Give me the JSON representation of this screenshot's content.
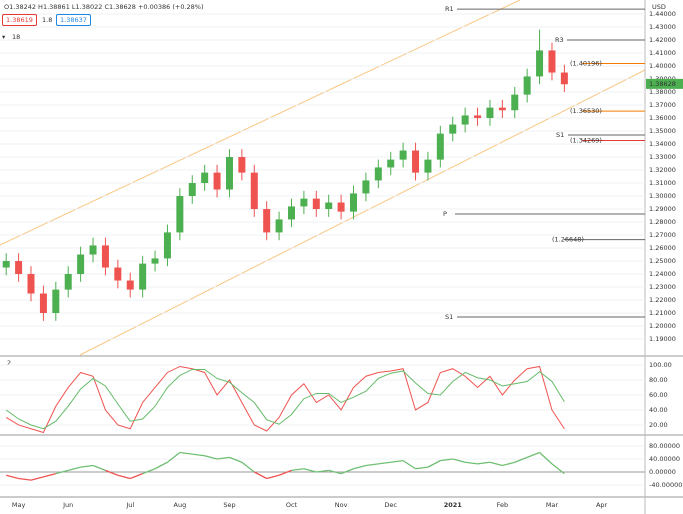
{
  "header": {
    "ohlc": "O1.38242 H1.38861 L1.38022 C1.38628 +0.00386 (+0.28%)",
    "bid": "1.38619",
    "spread": "1.8",
    "ask": "1.38637",
    "indicator": "18",
    "sub_indicator": "2",
    "currency": "USD"
  },
  "chart_data": [
    {
      "type": "candlestick",
      "categories": [
        null,
        "May",
        null,
        null,
        null,
        "Jun",
        null,
        null,
        null,
        null,
        "Jul",
        null,
        null,
        null,
        "Aug",
        null,
        null,
        null,
        "Sep",
        null,
        null,
        null,
        null,
        "Oct",
        null,
        null,
        null,
        "Nov",
        null,
        null,
        null,
        "Dec",
        null,
        null,
        null,
        null,
        "2021",
        null,
        null,
        null,
        "Feb",
        null,
        null,
        null,
        "Mar",
        null,
        null,
        null,
        "Apr",
        null,
        null,
        null
      ],
      "open": [
        1.245,
        1.25,
        1.24,
        1.225,
        1.21,
        1.228,
        1.24,
        1.255,
        1.262,
        1.245,
        1.235,
        1.228,
        1.248,
        1.252,
        1.272,
        1.3,
        1.31,
        1.318,
        1.305,
        1.33,
        1.318,
        1.29,
        1.272,
        1.282,
        1.292,
        1.298,
        1.29,
        1.295,
        1.288,
        1.302,
        1.312,
        1.322,
        1.328,
        1.335,
        1.318,
        1.328,
        1.348,
        1.355,
        1.362,
        1.36,
        1.368,
        1.366,
        1.378,
        1.392,
        1.412,
        1.395,
        null,
        null,
        null,
        null,
        null,
        null
      ],
      "high": [
        1.256,
        1.256,
        1.246,
        1.231,
        1.234,
        1.246,
        1.261,
        1.268,
        1.268,
        1.251,
        1.241,
        1.254,
        1.258,
        1.278,
        1.306,
        1.316,
        1.324,
        1.324,
        1.336,
        1.336,
        1.324,
        1.296,
        1.288,
        1.298,
        1.304,
        1.304,
        1.301,
        1.301,
        1.308,
        1.318,
        1.328,
        1.334,
        1.341,
        1.341,
        1.334,
        1.354,
        1.361,
        1.368,
        1.368,
        1.374,
        1.374,
        1.384,
        1.398,
        1.428,
        1.418,
        1.401,
        null,
        null,
        null,
        null,
        null,
        null
      ],
      "low": [
        1.239,
        1.234,
        1.219,
        1.204,
        1.204,
        1.222,
        1.234,
        1.249,
        1.239,
        1.229,
        1.222,
        1.222,
        1.242,
        1.246,
        1.266,
        1.294,
        1.304,
        1.299,
        1.299,
        1.312,
        1.284,
        1.266,
        1.266,
        1.276,
        1.286,
        1.284,
        1.284,
        1.282,
        1.282,
        1.296,
        1.306,
        1.316,
        1.322,
        1.312,
        1.312,
        1.322,
        1.342,
        1.349,
        1.354,
        1.354,
        1.36,
        1.36,
        1.372,
        1.386,
        1.389,
        1.38,
        null,
        null,
        null,
        null,
        null,
        null
      ],
      "close": [
        1.25,
        1.24,
        1.225,
        1.21,
        1.228,
        1.24,
        1.255,
        1.262,
        1.245,
        1.235,
        1.228,
        1.248,
        1.252,
        1.272,
        1.3,
        1.31,
        1.318,
        1.305,
        1.33,
        1.318,
        1.29,
        1.272,
        1.282,
        1.292,
        1.298,
        1.29,
        1.295,
        1.288,
        1.302,
        1.312,
        1.322,
        1.328,
        1.335,
        1.318,
        1.328,
        1.348,
        1.355,
        1.362,
        1.36,
        1.368,
        1.366,
        1.378,
        1.392,
        1.412,
        1.395,
        1.386,
        null,
        null,
        null,
        null,
        null,
        null
      ],
      "up_color": "#4caf50",
      "down_color": "#ef5350",
      "ylim": [
        1.1777,
        1.4508
      ],
      "yticks": [
        {
          "value": 1.19,
          "label": "1.19000"
        },
        {
          "value": 1.2,
          "label": "1.20000"
        },
        {
          "value": 1.21,
          "label": "1.21000"
        },
        {
          "value": 1.22,
          "label": "1.22000"
        },
        {
          "value": 1.23,
          "label": "1.23000"
        },
        {
          "value": 1.24,
          "label": "1.24000"
        },
        {
          "value": 1.25,
          "label": "1.25000"
        },
        {
          "value": 1.26,
          "label": "1.26000"
        },
        {
          "value": 1.27,
          "label": "1.27000"
        },
        {
          "value": 1.28,
          "label": "1.28000"
        },
        {
          "value": 1.29,
          "label": "1.29000"
        },
        {
          "value": 1.3,
          "label": "1.30000"
        },
        {
          "value": 1.31,
          "label": "1.31000"
        },
        {
          "value": 1.32,
          "label": "1.32000"
        },
        {
          "value": 1.33,
          "label": "1.33000"
        },
        {
          "value": 1.34,
          "label": "1.34000"
        },
        {
          "value": 1.35,
          "label": "1.35000"
        },
        {
          "value": 1.36,
          "label": "1.36000"
        },
        {
          "value": 1.37,
          "label": "1.37000"
        },
        {
          "value": 1.38,
          "label": "1.38000"
        },
        {
          "value": 1.39,
          "label": "1.39000"
        },
        {
          "value": 1.4,
          "label": "1.40000"
        },
        {
          "value": 1.41,
          "label": "1.41000"
        },
        {
          "value": 1.42,
          "label": "1.42000"
        },
        {
          "value": 1.43,
          "label": "1.43000"
        },
        {
          "value": 1.44,
          "label": "1.44000"
        }
      ],
      "last_price": 1.38628,
      "last_price_color": "#4caf50",
      "levels": [
        {
          "label": "R1",
          "value": 1.4438,
          "color": "#666"
        },
        {
          "label": "R3",
          "value": 1.42,
          "color": "#666"
        },
        {
          "label": "(1.40196)",
          "value": 1.40196,
          "color": "#f57c00"
        },
        {
          "label": "(1.36530)",
          "value": 1.3653,
          "color": "#f57c00"
        },
        {
          "label": "S1",
          "value": 1.3469,
          "color": "#666"
        },
        {
          "label": "(1.34269)",
          "value": 1.34269,
          "color": "#e53935"
        },
        {
          "label": "P",
          "value": 1.2862,
          "color": "#666"
        },
        {
          "label": "(1.26648)",
          "value": 1.26648,
          "color": "#666"
        },
        {
          "label": "S1",
          "value": 1.2069,
          "color": "#666"
        }
      ],
      "grid": true
    },
    {
      "type": "line",
      "series": [
        {
          "color": "#ef5350",
          "values": [
            30,
            20,
            15,
            10,
            45,
            70,
            90,
            85,
            40,
            20,
            15,
            50,
            70,
            90,
            98,
            95,
            90,
            60,
            80,
            50,
            20,
            12,
            30,
            60,
            75,
            50,
            60,
            40,
            70,
            85,
            90,
            92,
            95,
            40,
            50,
            90,
            95,
            85,
            70,
            85,
            60,
            80,
            95,
            98,
            40,
            15
          ]
        },
        {
          "color": "#66bb6a",
          "values": [
            40,
            28,
            20,
            15,
            25,
            45,
            68,
            82,
            72,
            48,
            25,
            28,
            45,
            70,
            86,
            94,
            94,
            82,
            77,
            63,
            50,
            27,
            21,
            34,
            55,
            62,
            62,
            50,
            57,
            65,
            82,
            89,
            92,
            76,
            62,
            60,
            78,
            90,
            83,
            80,
            72,
            75,
            78,
            91,
            78,
            51
          ]
        }
      ],
      "ylim": [
        9.3,
        109.3
      ],
      "yticks": [
        {
          "value": 20,
          "label": "20.00"
        },
        {
          "value": 40,
          "label": "40.00"
        },
        {
          "value": 60,
          "label": "60.00"
        },
        {
          "value": 80,
          "label": "80.00"
        },
        {
          "value": 100,
          "label": "100.00"
        }
      ],
      "grid": true
    },
    {
      "type": "oscillator",
      "values": [
        -10,
        -20,
        -25,
        -15,
        -5,
        5,
        15,
        20,
        5,
        -10,
        -20,
        -5,
        10,
        30,
        60,
        55,
        50,
        40,
        45,
        30,
        0,
        -20,
        -10,
        5,
        10,
        0,
        5,
        -5,
        10,
        20,
        25,
        30,
        35,
        10,
        15,
        35,
        40,
        30,
        25,
        30,
        20,
        30,
        45,
        60,
        25,
        -5
      ],
      "up_color": "#6fbf73",
      "down_color": "#ef5350",
      "ylim": [
        -76.9,
        107.7
      ],
      "yticks": [
        {
          "value": -40,
          "label": "-40.00000"
        },
        {
          "value": 0,
          "label": "0.00000"
        },
        {
          "value": 40,
          "label": "40.00000"
        },
        {
          "value": 80,
          "label": "80.00000"
        }
      ],
      "grid": true
    }
  ]
}
